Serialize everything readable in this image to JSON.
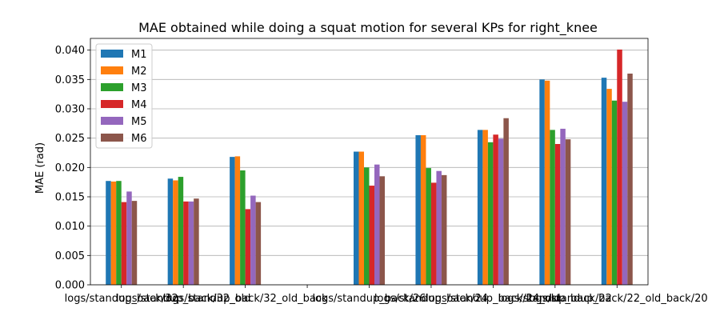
{
  "chart_data": {
    "type": "bar",
    "title": "MAE obtained while doing a squat motion for several KPs for right_knee",
    "xlabel": "",
    "ylabel": "MAE (rad)",
    "ylim": [
      0,
      0.042
    ],
    "yticks": [
      "0.000",
      "0.005",
      "0.010",
      "0.015",
      "0.020",
      "0.025",
      "0.030",
      "0.035",
      "0.040"
    ],
    "grid": "y",
    "legend_position": "top-left",
    "categories": [
      "logs/standup_back/32",
      "logs/standup_back/32_old",
      "logs/standup_back/32_old_",
      "",
      "logs/standup_back/26",
      "logs/standup_back/24",
      "logs/standup_back/24_old",
      "logs/standup_back/22",
      "logs/standup_back/22_old"
    ],
    "xtick_labels": [
      "logs/standup_back/32",
      "logs/standup_back/32_old",
      "logs/standup_back/32_old_back",
      "",
      "logs/standup_back/26",
      "logs/standup_back/24",
      "logs/standup_back/24_old",
      "logs/standup_back/22",
      "logs/standup_back/22_old_back/20"
    ],
    "series": [
      {
        "name": "M1",
        "color": "#1f77b4",
        "values": [
          0.0177,
          0.0181,
          0.0218,
          0,
          0.0227,
          0.0255,
          0.0264,
          0.035,
          0.0353
        ]
      },
      {
        "name": "M2",
        "color": "#ff7f0e",
        "values": [
          0.0176,
          0.0178,
          0.0219,
          0,
          0.0227,
          0.0255,
          0.0264,
          0.0348,
          0.0334
        ]
      },
      {
        "name": "M3",
        "color": "#2ca02c",
        "values": [
          0.0177,
          0.0184,
          0.0195,
          0,
          0.02,
          0.0199,
          0.0243,
          0.0264,
          0.0314
        ]
      },
      {
        "name": "M4",
        "color": "#d62728",
        "values": [
          0.0141,
          0.0142,
          0.0129,
          0,
          0.0169,
          0.0174,
          0.0256,
          0.024,
          0.0401
        ]
      },
      {
        "name": "M5",
        "color": "#9467bd",
        "values": [
          0.0159,
          0.0142,
          0.0152,
          0,
          0.0205,
          0.0194,
          0.0249,
          0.0266,
          0.0312
        ]
      },
      {
        "name": "M6",
        "color": "#8c564b",
        "values": [
          0.0143,
          0.0147,
          0.0141,
          0,
          0.0185,
          0.0187,
          0.0284,
          0.0248,
          0.036
        ]
      }
    ]
  }
}
